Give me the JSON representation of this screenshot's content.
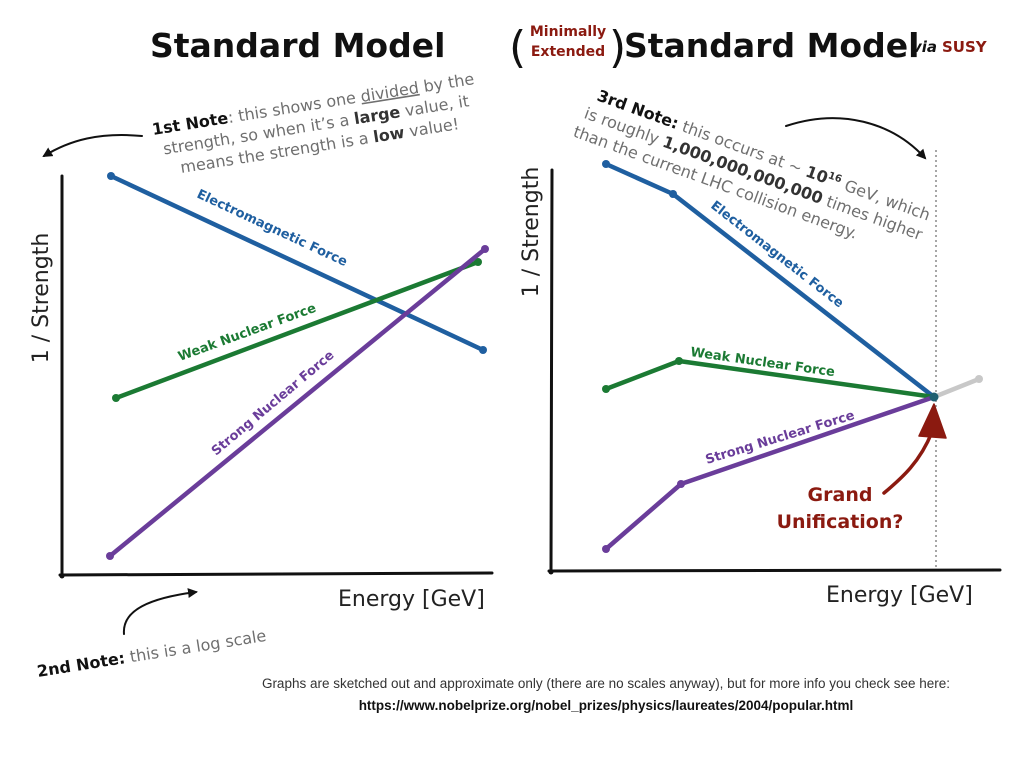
{
  "colors": {
    "electromagnetic": "#1f5fa0",
    "weak": "#1b7a33",
    "strong": "#6a3d9a",
    "accent_red": "#8b1a10",
    "extension_gray": "#c8c8c8",
    "dotted_line": "#888888"
  },
  "left_panel": {
    "title": "Standard Model",
    "y_axis_label": "1 / Strength",
    "x_axis_label": "Energy [GeV]",
    "labels": {
      "electromagnetic": "Electromagnetic Force",
      "weak": "Weak Nuclear Force",
      "strong": "Strong Nuclear Force"
    }
  },
  "right_panel": {
    "title_paren_line1": "Minimally",
    "title_paren_line2": "Extended",
    "title": "Standard Model",
    "title_via": "via",
    "title_susy": "SUSY",
    "y_axis_label": "1 / Strength",
    "x_axis_label": "Energy [GeV]",
    "labels": {
      "electromagnetic": "Electromagnetic Force",
      "weak": "Weak Nuclear Force",
      "strong": "Strong Nuclear Force"
    },
    "unification_line1": "Grand",
    "unification_line2": "Unification?"
  },
  "notes": {
    "note1": {
      "head": "1st Note",
      "colon": ":",
      "line1": " this shows one ",
      "line1_underlined": "divided",
      "line1_end": " by the",
      "line2_a": "strength, so when it’s a ",
      "line2_bold": "large",
      "line2_b": " value, it",
      "line3_a": "means the strength is a ",
      "line3_bold": "low",
      "line3_b": " value!"
    },
    "note2": {
      "head": "2nd Note:",
      "body": " this is a log scale"
    },
    "note3": {
      "head": "3rd Note:",
      "line1_a": " this occurs at ~ ",
      "line1_bold": "10",
      "line1_sup": "16",
      "line1_b": " GeV, which",
      "line2_a": "is roughly ",
      "line2_bold": "1,000,000,000,000",
      "line2_b": " times higher",
      "line3": "than the current LHC collision energy."
    }
  },
  "footer": {
    "line1": "Graphs are sketched out and approximate only (there are no scales anyway), but for more info you check see here:",
    "link": "https://www.nobelprize.org/nobel_prizes/physics/laureates/2004/popular.html"
  }
}
